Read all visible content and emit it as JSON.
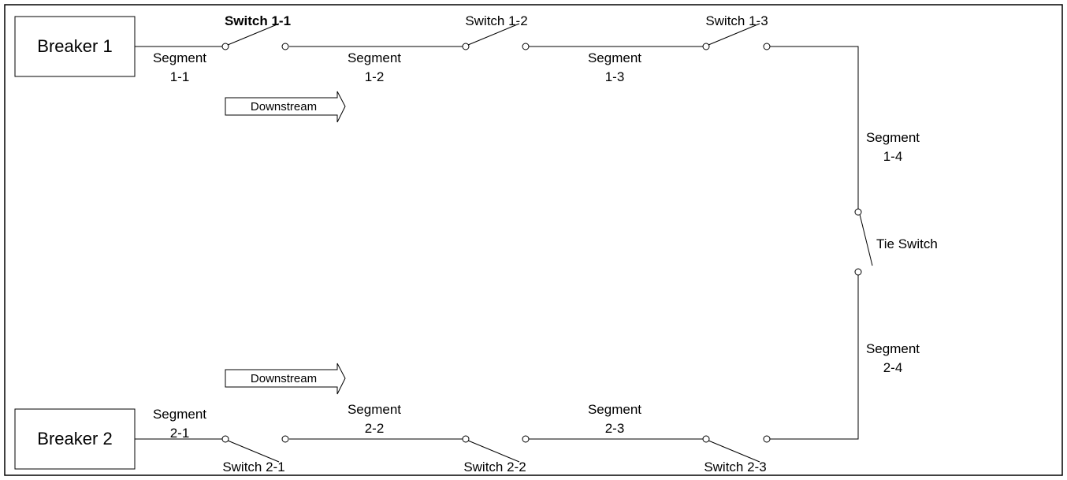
{
  "breakers": {
    "b1": "Breaker 1",
    "b2": "Breaker 2"
  },
  "switches": {
    "s11": "Switch 1-1",
    "s12": "Switch 1-2",
    "s13": "Switch 1-3",
    "s21": "Switch 2-1",
    "s22": "Switch 2-2",
    "s23": "Switch 2-3",
    "tie": "Tie Switch"
  },
  "segments": {
    "s11": [
      "Segment",
      "1-1"
    ],
    "s12": [
      "Segment",
      "1-2"
    ],
    "s13": [
      "Segment",
      "1-3"
    ],
    "s14": [
      "Segment",
      "1-4"
    ],
    "s21": [
      "Segment",
      "2-1"
    ],
    "s22": [
      "Segment",
      "2-2"
    ],
    "s23": [
      "Segment",
      "2-3"
    ],
    "s24": [
      "Segment",
      "2-4"
    ]
  },
  "arrows": {
    "top": "Downstream",
    "bottom": "Downstream"
  }
}
